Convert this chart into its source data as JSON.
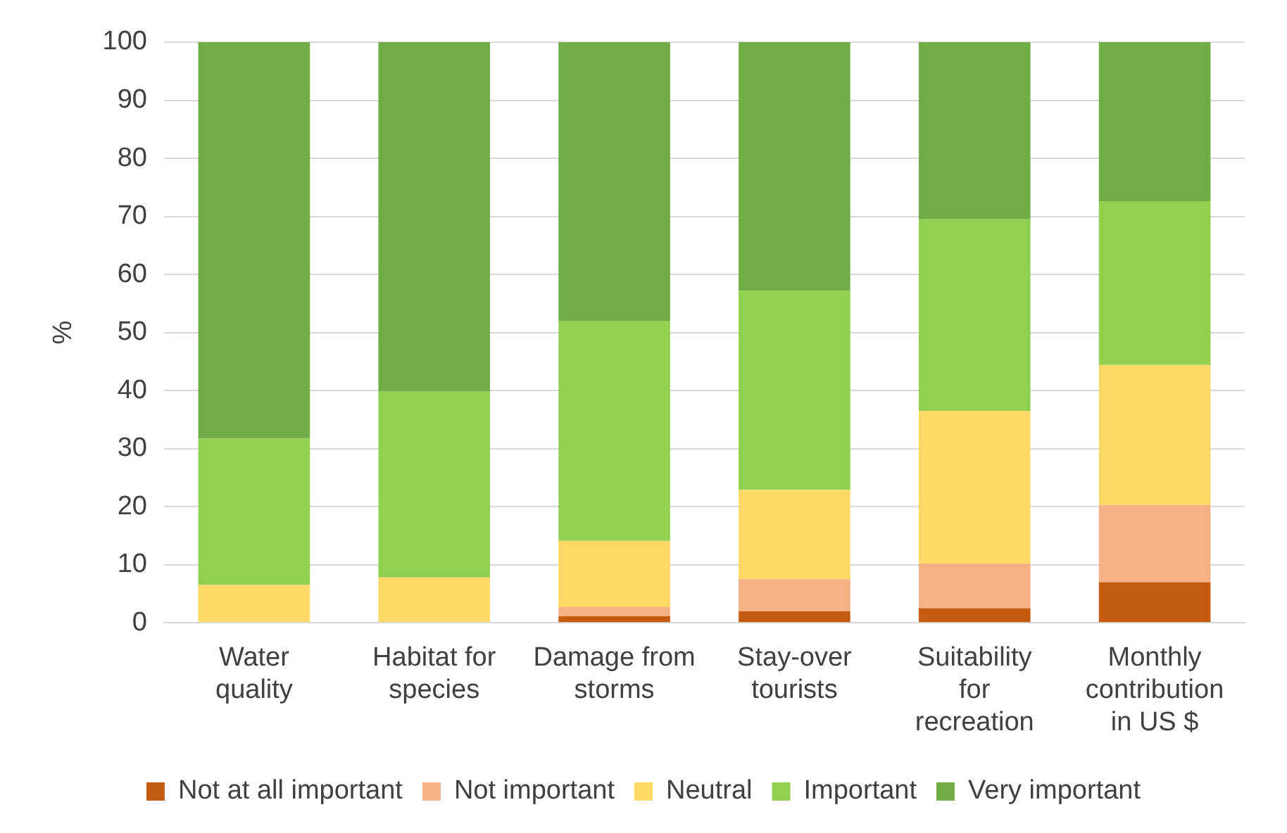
{
  "chart_data": {
    "type": "bar",
    "stacked": true,
    "ylabel": "%",
    "categories": [
      "Water quality",
      "Habitat for species",
      "Damage from storms",
      "Stay-over tourists",
      "Suitability for recreation",
      "Monthly contribution in US $"
    ],
    "series": [
      {
        "name": "Not at all important",
        "color": "#c55a11",
        "values": [
          0,
          0,
          1.1,
          2,
          2.5,
          7
        ]
      },
      {
        "name": "Not important",
        "color": "#f4b183",
        "values": [
          0,
          0,
          1.6,
          5.5,
          7.7,
          13.3
        ]
      },
      {
        "name": "Neutral",
        "color": "#ffd966",
        "values": [
          6.5,
          7.8,
          11.4,
          15.4,
          26.3,
          24.1
        ]
      },
      {
        "name": "Important",
        "color": "#92d050",
        "values": [
          25.2,
          32,
          37.9,
          34.3,
          33,
          28.2
        ]
      },
      {
        "name": "Very important",
        "color": "#70ad47",
        "values": [
          68.3,
          60.2,
          48,
          42.8,
          30.5,
          27.4
        ]
      }
    ],
    "ylim": [
      0,
      100
    ],
    "yticks": [
      0,
      10,
      20,
      30,
      40,
      50,
      60,
      70,
      80,
      90,
      100
    ],
    "grid": "y",
    "legend": "bottom"
  }
}
